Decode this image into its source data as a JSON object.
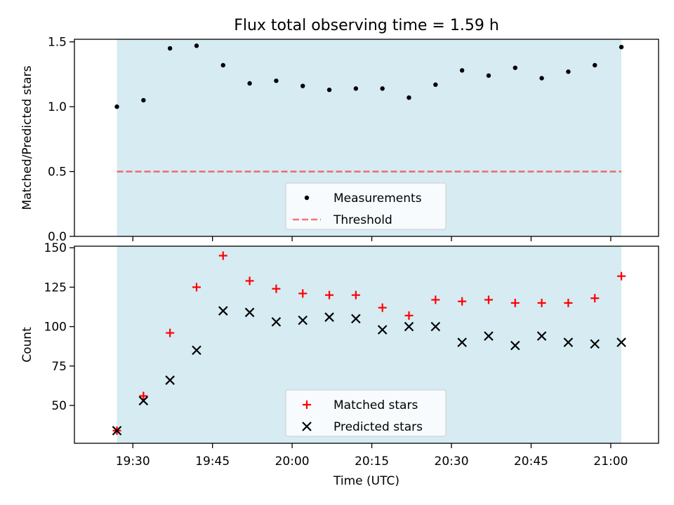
{
  "figure": {
    "title": "Flux total observing time = 1.59 h"
  },
  "colors": {
    "observing_span": "#add8e6",
    "measurement": "#000000",
    "threshold": "#ff0000",
    "matched": "#ff0000",
    "predicted": "#000000",
    "legend_bg": "#ffffff"
  },
  "chart_data": [
    {
      "type": "scatter",
      "ylabel": "Matched/Predicted stars",
      "ylim": [
        0,
        1.52
      ],
      "yticks": [
        0.0,
        0.5,
        1.0,
        1.5
      ],
      "ytick_labels": [
        "0.0",
        "0.5",
        "1.0",
        "1.5"
      ],
      "xlim": [
        "19:19",
        "21:09"
      ],
      "shaded_span": [
        "19:27",
        "21:02"
      ],
      "legend": {
        "placement": "lower center",
        "entries": [
          "Measurements",
          "Threshold"
        ]
      },
      "series": [
        {
          "name": "Measurements",
          "marker": "dot",
          "x": [
            "19:27",
            "19:32",
            "19:37",
            "19:42",
            "19:47",
            "19:52",
            "19:57",
            "20:02",
            "20:07",
            "20:12",
            "20:17",
            "20:22",
            "20:27",
            "20:32",
            "20:37",
            "20:42",
            "20:47",
            "20:52",
            "20:57",
            "21:02"
          ],
          "y": [
            1.0,
            1.05,
            1.45,
            1.47,
            1.32,
            1.18,
            1.2,
            1.16,
            1.13,
            1.14,
            1.14,
            1.07,
            1.17,
            1.28,
            1.24,
            1.3,
            1.22,
            1.27,
            1.32,
            1.46
          ]
        },
        {
          "name": "Threshold",
          "marker": "dashed-line",
          "x": [
            "19:27",
            "21:02"
          ],
          "y": [
            0.5,
            0.5
          ]
        }
      ]
    },
    {
      "type": "scatter",
      "xlabel": "Time (UTC)",
      "ylabel": "Count",
      "ylim": [
        26,
        151
      ],
      "yticks": [
        50,
        75,
        100,
        125,
        150
      ],
      "ytick_labels": [
        "50",
        "75",
        "100",
        "125",
        "150"
      ],
      "xlim": [
        "19:19",
        "21:09"
      ],
      "xticks": [
        "19:30",
        "19:45",
        "20:00",
        "20:15",
        "20:30",
        "20:45",
        "21:00"
      ],
      "shaded_span": [
        "19:27",
        "21:02"
      ],
      "legend": {
        "placement": "lower center",
        "entries": [
          "Matched stars",
          "Predicted stars"
        ]
      },
      "series": [
        {
          "name": "Matched stars",
          "marker": "plus",
          "x": [
            "19:27",
            "19:32",
            "19:37",
            "19:42",
            "19:47",
            "19:52",
            "19:57",
            "20:02",
            "20:07",
            "20:12",
            "20:17",
            "20:22",
            "20:27",
            "20:32",
            "20:37",
            "20:42",
            "20:47",
            "20:52",
            "20:57",
            "21:02"
          ],
          "y": [
            34,
            56,
            96,
            125,
            145,
            129,
            124,
            121,
            120,
            120,
            112,
            107,
            117,
            116,
            117,
            115,
            115,
            115,
            118,
            132
          ]
        },
        {
          "name": "Predicted stars",
          "marker": "x",
          "x": [
            "19:27",
            "19:32",
            "19:37",
            "19:42",
            "19:47",
            "19:52",
            "19:57",
            "20:02",
            "20:07",
            "20:12",
            "20:17",
            "20:22",
            "20:27",
            "20:32",
            "20:37",
            "20:42",
            "20:47",
            "20:52",
            "20:57",
            "21:02"
          ],
          "y": [
            34,
            53,
            66,
            85,
            110,
            109,
            103,
            104,
            106,
            105,
            98,
            100,
            100,
            90,
            94,
            88,
            94,
            90,
            89,
            90
          ]
        }
      ]
    }
  ]
}
